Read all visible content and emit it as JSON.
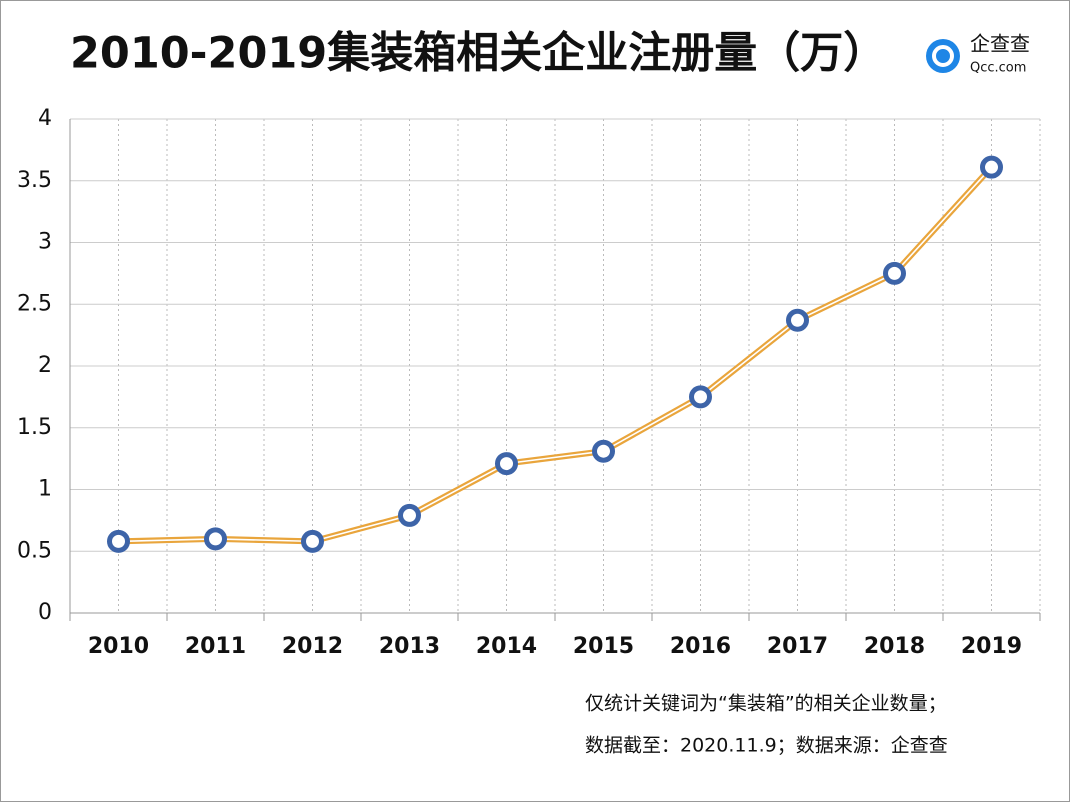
{
  "chart_data": {
    "type": "line",
    "title": "2010-2019集装箱相关企业注册量（万）",
    "logo": {
      "name": "企查查",
      "url": "Qcc.com"
    },
    "categories": [
      "2010",
      "2011",
      "2012",
      "2013",
      "2014",
      "2015",
      "2016",
      "2017",
      "2018",
      "2019"
    ],
    "series": [
      {
        "name": "注册量",
        "color": "#e9a53c",
        "marker_color": "#3d64a8",
        "values": [
          0.58,
          0.6,
          0.58,
          0.79,
          1.21,
          1.31,
          1.75,
          2.37,
          2.75,
          3.61
        ]
      }
    ],
    "ylim": [
      0,
      4
    ],
    "yticks": [
      0,
      0.5,
      1,
      1.5,
      2,
      2.5,
      3,
      3.5,
      4
    ],
    "grid": true,
    "notes": [
      "仅统计关键词为“集装箱”的相关企业数量；",
      "数据截至：2020.11.9；数据来源：企查查"
    ]
  }
}
